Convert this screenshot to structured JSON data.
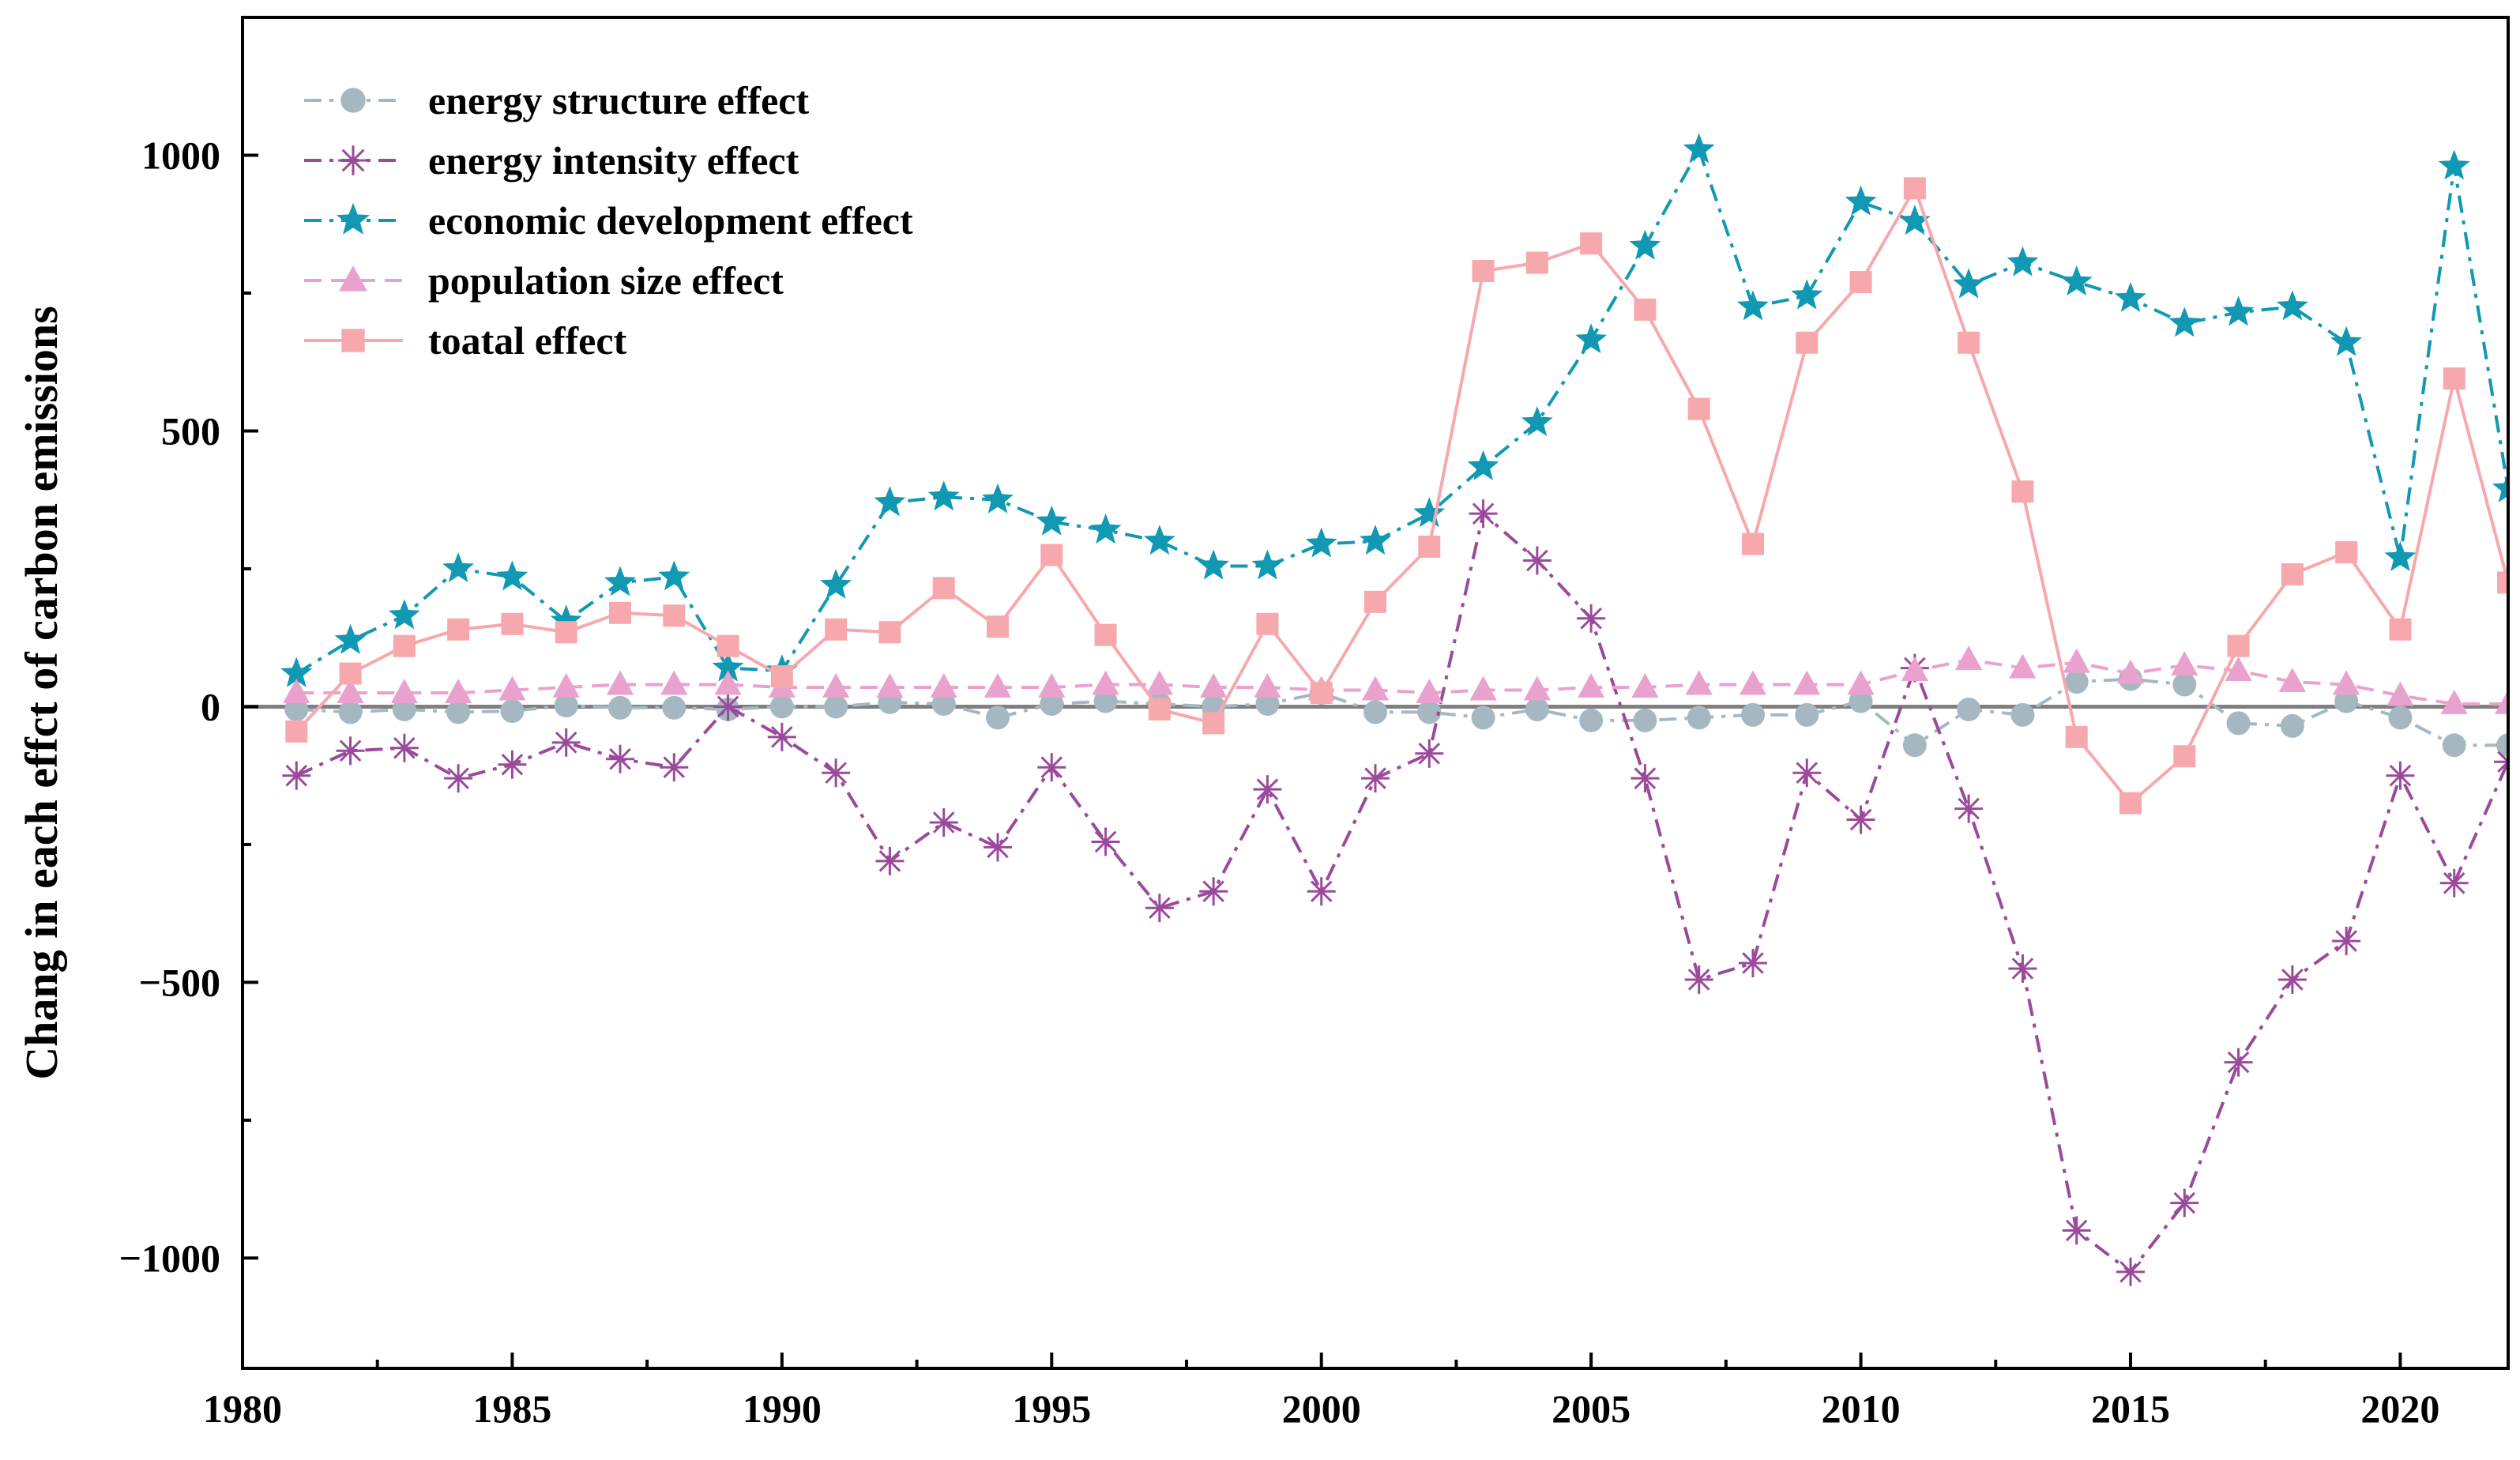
{
  "chart_data": {
    "type": "line",
    "title": "",
    "xlabel": "",
    "ylabel": "Chang in each effct of carbon emissions",
    "xlim": [
      1980,
      2022
    ],
    "ylim": [
      -1200,
      1250
    ],
    "x_ticks": [
      1980,
      1985,
      1990,
      1995,
      2000,
      2005,
      2010,
      2015,
      2020
    ],
    "y_ticks": [
      -1000,
      -500,
      0,
      500,
      1000
    ],
    "y_tick_labels": [
      "−1000",
      "−500",
      "0",
      "500",
      "1000"
    ],
    "legend_position": "top-left",
    "zero_line": true,
    "x": [
      1981,
      1982,
      1983,
      1984,
      1985,
      1986,
      1987,
      1988,
      1989,
      1990,
      1991,
      1992,
      1993,
      1994,
      1995,
      1996,
      1997,
      1998,
      1999,
      2000,
      2001,
      2002,
      2003,
      2004,
      2005,
      2006,
      2007,
      2008,
      2009,
      2010,
      2011,
      2012,
      2013,
      2014,
      2015,
      2016,
      2017,
      2018,
      2019,
      2020,
      2021,
      2022
    ],
    "series": [
      {
        "name": "energy structure effect",
        "color": "#a5b8c2",
        "marker": "circle",
        "line_style": "dash-dot",
        "values": [
          -5,
          -10,
          -5,
          -10,
          -8,
          2,
          -2,
          -2,
          -5,
          0,
          0,
          8,
          5,
          -20,
          5,
          10,
          5,
          0,
          5,
          25,
          -10,
          -10,
          -20,
          -5,
          -25,
          -25,
          -20,
          -15,
          -15,
          10,
          -70,
          -5,
          -15,
          45,
          50,
          40,
          -30,
          -35,
          10,
          -20,
          -70,
          -70
        ]
      },
      {
        "name": "energy intensity effect",
        "color": "#9b4a9b",
        "marker": "asterisk",
        "line_style": "dash-dot",
        "values": [
          -125,
          -80,
          -75,
          -130,
          -105,
          -65,
          -95,
          -110,
          0,
          -55,
          -120,
          -280,
          -210,
          -255,
          -110,
          -245,
          -365,
          -335,
          -150,
          -335,
          -130,
          -85,
          350,
          265,
          160,
          -130,
          -495,
          -465,
          -120,
          -205,
          70,
          -185,
          -475,
          -950,
          -1025,
          -900,
          -645,
          -495,
          -425,
          -125,
          -320,
          -100
        ]
      },
      {
        "name": "economic development effect",
        "color": "#1198b2",
        "marker": "star",
        "line_style": "dash-dot",
        "values": [
          60,
          120,
          165,
          250,
          235,
          155,
          225,
          235,
          70,
          65,
          220,
          370,
          380,
          375,
          335,
          320,
          300,
          255,
          255,
          295,
          300,
          350,
          435,
          515,
          665,
          835,
          1010,
          725,
          745,
          915,
          880,
          765,
          805,
          770,
          740,
          695,
          715,
          725,
          660,
          270,
          980,
          395
        ]
      },
      {
        "name": "population size effect",
        "color": "#e9a2ce",
        "marker": "triangle",
        "line_style": "dashed",
        "values": [
          25,
          25,
          25,
          25,
          30,
          35,
          40,
          40,
          40,
          35,
          35,
          35,
          35,
          35,
          35,
          40,
          40,
          35,
          35,
          30,
          30,
          25,
          30,
          30,
          35,
          35,
          40,
          40,
          40,
          40,
          65,
          85,
          70,
          80,
          60,
          75,
          65,
          45,
          40,
          20,
          5,
          5
        ]
      },
      {
        "name": "toatal effect",
        "color": "#f7a8ac",
        "marker": "square",
        "line_style": "solid",
        "values": [
          -45,
          60,
          110,
          140,
          150,
          135,
          170,
          165,
          110,
          55,
          140,
          135,
          215,
          145,
          275,
          130,
          -5,
          -30,
          150,
          25,
          190,
          290,
          790,
          805,
          840,
          720,
          540,
          295,
          660,
          770,
          940,
          660,
          390,
          -55,
          -175,
          -90,
          110,
          240,
          280,
          140,
          595,
          225
        ]
      }
    ]
  }
}
